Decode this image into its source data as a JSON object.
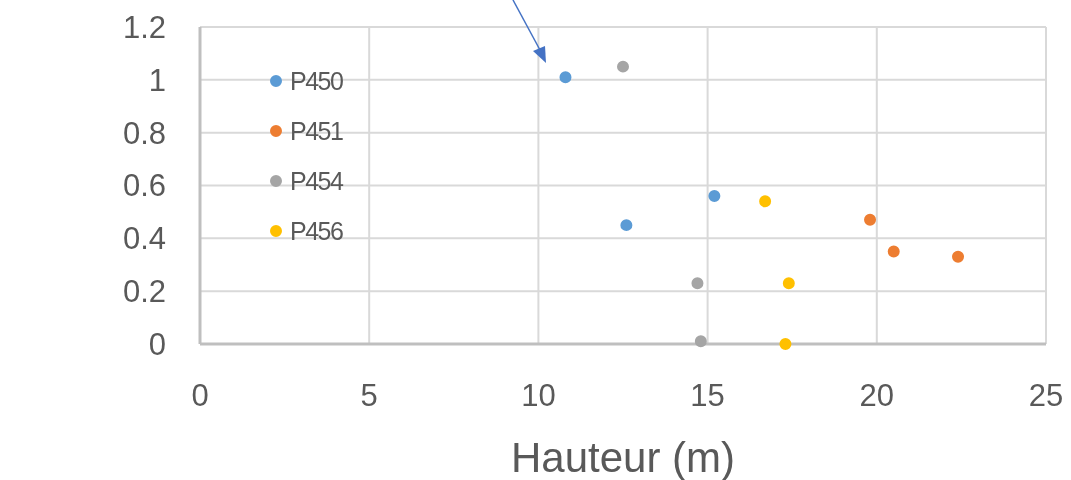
{
  "chart_data": {
    "type": "scatter",
    "xlabel": "Hauteur (m)",
    "xlim": [
      0,
      25
    ],
    "xticks": [
      0,
      5,
      10,
      15,
      20,
      25
    ],
    "ylim": [
      0,
      1.2
    ],
    "yticks": [
      0,
      0.2,
      0.4,
      0.6,
      0.8,
      1,
      1.2
    ],
    "grid": true,
    "legend": "top left",
    "marker": "circle",
    "series": [
      {
        "name": "P450",
        "color": "#5b9bd5",
        "x": [
          10.8,
          12.6,
          15.2
        ],
        "values": [
          1.01,
          0.45,
          0.56
        ]
      },
      {
        "name": "P451",
        "color": "#ed7d31",
        "x": [
          19.8,
          20.5,
          22.4
        ],
        "values": [
          0.47,
          0.35,
          0.33
        ]
      },
      {
        "name": "P454",
        "color": "#a5a5a5",
        "x": [
          12.5,
          14.7,
          14.8
        ],
        "values": [
          1.05,
          0.23,
          0.01
        ]
      },
      {
        "name": "P456",
        "color": "#ffc000",
        "x": [
          16.7,
          17.4,
          17.3
        ],
        "values": [
          0.54,
          0.23,
          0.0
        ]
      }
    ]
  }
}
